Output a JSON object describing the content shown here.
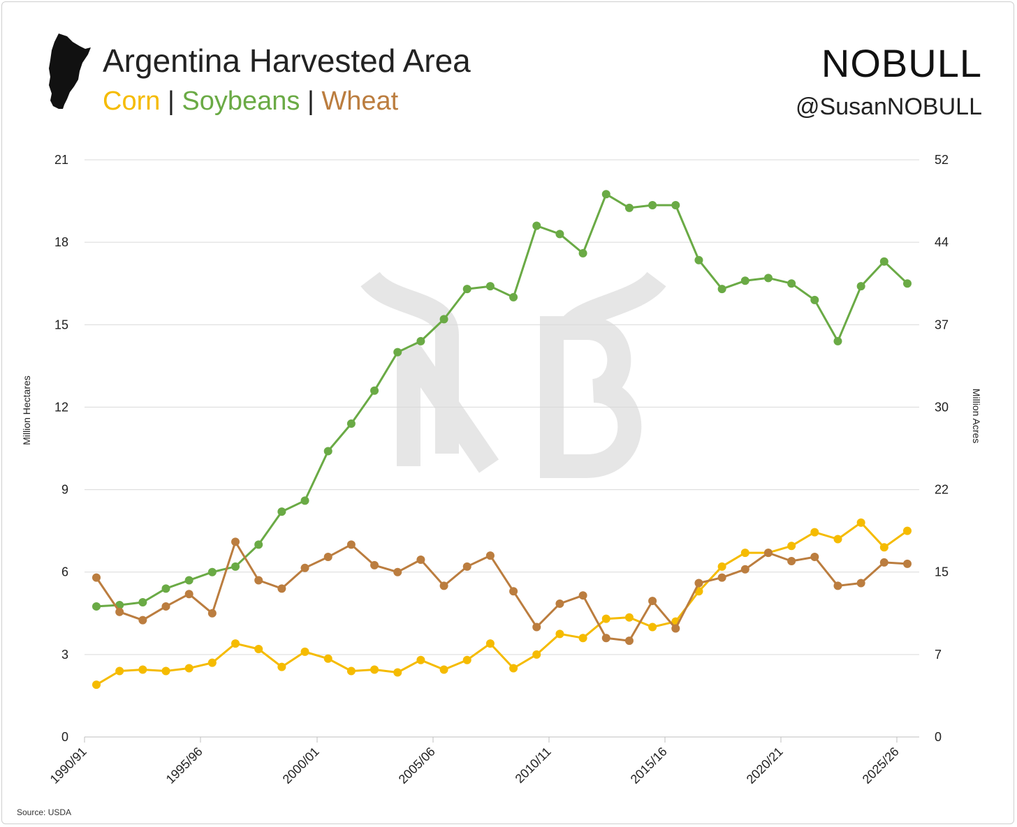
{
  "header": {
    "title": "Argentina Harvested Area",
    "sub_corn": "Corn",
    "sub_sep1": "|",
    "sub_soy": "Soybeans",
    "sub_sep2": "|",
    "sub_wheat": "Wheat",
    "brand": "NOBULL",
    "handle": "@SusanNOBULL"
  },
  "source": "Source: USDA",
  "watermark": "NB",
  "colors": {
    "corn": "#f5bb00",
    "soybeans": "#6aaa45",
    "wheat": "#bb7d3f",
    "grid": "#d9d9d9",
    "watermark": "#e6e6e6"
  },
  "chart_data": {
    "type": "line",
    "title": "Argentina Harvested Area",
    "ylabel": "Million Hectares",
    "y2label": "Million Acres",
    "ylim": [
      0,
      21
    ],
    "yticks": [
      0,
      3,
      6,
      9,
      12,
      15,
      18,
      21
    ],
    "y2ticks": [
      0,
      7,
      15,
      22,
      30,
      37,
      44,
      52
    ],
    "xticks": [
      "1990/91",
      "1995/96",
      "2000/01",
      "2005/06",
      "2010/11",
      "2015/16",
      "2020/21",
      "2025/26"
    ],
    "x": [
      "1990/91",
      "1991/92",
      "1992/93",
      "1993/94",
      "1994/95",
      "1995/96",
      "1996/97",
      "1997/98",
      "1998/99",
      "1999/00",
      "2000/01",
      "2001/02",
      "2002/03",
      "2003/04",
      "2004/05",
      "2005/06",
      "2006/07",
      "2007/08",
      "2008/09",
      "2009/10",
      "2010/11",
      "2011/12",
      "2012/13",
      "2013/14",
      "2014/15",
      "2015/16",
      "2016/17",
      "2017/18",
      "2018/19",
      "2019/20",
      "2020/21",
      "2021/22",
      "2022/23",
      "2023/24",
      "2024/25",
      "2025/26"
    ],
    "series": [
      {
        "name": "Soybeans",
        "values": [
          4.75,
          4.8,
          4.9,
          5.4,
          5.7,
          6.0,
          6.2,
          7.0,
          8.2,
          8.6,
          10.4,
          11.4,
          12.6,
          14.0,
          14.4,
          15.2,
          16.3,
          16.4,
          16.0,
          18.6,
          18.3,
          17.6,
          19.75,
          19.25,
          19.35,
          19.35,
          17.35,
          16.3,
          16.6,
          16.7,
          16.5,
          15.9,
          14.4,
          16.4,
          17.3,
          16.5
        ]
      },
      {
        "name": "Corn",
        "values": [
          1.9,
          2.4,
          2.45,
          2.4,
          2.5,
          2.7,
          3.4,
          3.2,
          2.55,
          3.1,
          2.85,
          2.4,
          2.45,
          2.35,
          2.8,
          2.45,
          2.8,
          3.4,
          2.5,
          3.0,
          3.75,
          3.6,
          4.3,
          4.35,
          4.0,
          4.2,
          5.3,
          6.2,
          6.7,
          6.7,
          6.95,
          7.45,
          7.2,
          7.8,
          6.9,
          7.5
        ]
      },
      {
        "name": "Wheat",
        "values": [
          5.8,
          4.55,
          4.25,
          4.75,
          5.2,
          4.5,
          7.1,
          5.7,
          5.4,
          6.15,
          6.55,
          7.0,
          6.25,
          6.0,
          6.45,
          5.5,
          6.2,
          6.6,
          5.3,
          4.0,
          4.85,
          5.15,
          3.6,
          3.5,
          4.95,
          3.95,
          5.6,
          5.8,
          6.1,
          6.7,
          6.4,
          6.55,
          5.5,
          5.6,
          6.35,
          6.3
        ]
      }
    ]
  }
}
